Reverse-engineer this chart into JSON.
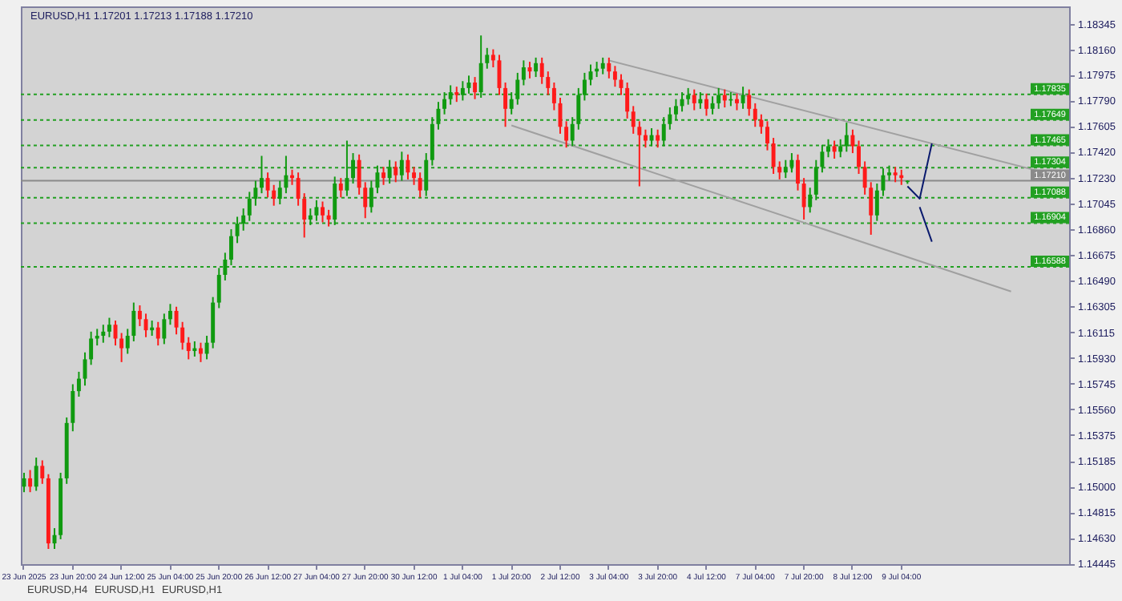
{
  "chart_data": {
    "type": "candlestick",
    "categories": [
      "23 Jun 2025",
      null,
      null,
      null,
      null,
      null,
      null,
      null,
      "23 Jun 20:00",
      null,
      null,
      null,
      null,
      null,
      null,
      null,
      "24 Jun 12:00",
      null,
      null,
      null,
      null,
      null,
      null,
      null,
      "25 Jun 04:00",
      null,
      null,
      null,
      null,
      null,
      null,
      null,
      "25 Jun 20:00",
      null,
      null,
      null,
      null,
      null,
      null,
      null,
      "26 Jun 12:00",
      null,
      null,
      null,
      null,
      null,
      null,
      null,
      "27 Jun 04:00",
      null,
      null,
      null,
      null,
      null,
      null,
      null,
      "27 Jun 20:00",
      null,
      null,
      null,
      null,
      null,
      null,
      null,
      "30 Jun 12:00",
      null,
      null,
      null,
      null,
      null,
      null,
      null,
      "1 Jul 04:00",
      null,
      null,
      null,
      null,
      null,
      null,
      null,
      "1 Jul 20:00",
      null,
      null,
      null,
      null,
      null,
      null,
      null,
      "2 Jul 12:00",
      null,
      null,
      null,
      null,
      null,
      null,
      null,
      "3 Jul 04:00",
      null,
      null,
      null,
      null,
      null,
      null,
      null,
      "3 Jul 20:00",
      null,
      null,
      null,
      null,
      null,
      null,
      null,
      "4 Jul 12:00",
      null,
      null,
      null,
      null,
      null,
      null,
      null,
      "7 Jul 04:00",
      null,
      null,
      null,
      null,
      null,
      null,
      null,
      "7 Jul 20:00",
      null,
      null,
      null,
      null,
      null,
      null,
      null,
      "8 Jul 12:00",
      null,
      null,
      null,
      null,
      null,
      null,
      null,
      "9 Jul 04:00",
      null,
      null,
      null,
      null,
      null,
      null,
      null,
      null,
      null,
      null,
      null,
      null,
      null,
      null,
      null,
      null,
      null,
      null,
      null,
      null,
      null,
      null,
      null,
      null,
      null,
      null,
      null
    ],
    "ohlc": [
      [
        1.15,
        1.151,
        1.1496,
        1.1506
      ],
      [
        1.1506,
        1.1512,
        1.1496,
        1.15
      ],
      [
        1.15,
        1.1521,
        1.1497,
        1.1515
      ],
      [
        1.1515,
        1.1519,
        1.1502,
        1.1506
      ],
      [
        1.1506,
        1.1509,
        1.1455,
        1.1459
      ],
      [
        1.1459,
        1.147,
        1.1455,
        1.1465
      ],
      [
        1.1465,
        1.151,
        1.1462,
        1.1506
      ],
      [
        1.1506,
        1.155,
        1.1502,
        1.1546
      ],
      [
        1.1546,
        1.1574,
        1.154,
        1.1569
      ],
      [
        1.1569,
        1.1583,
        1.1565,
        1.1578
      ],
      [
        1.1578,
        1.1597,
        1.1573,
        1.1592
      ],
      [
        1.1592,
        1.1612,
        1.1588,
        1.1607
      ],
      [
        1.1607,
        1.1614,
        1.1602,
        1.1609
      ],
      [
        1.1609,
        1.1617,
        1.1604,
        1.1612
      ],
      [
        1.1612,
        1.1622,
        1.1608,
        1.1617
      ],
      [
        1.1617,
        1.162,
        1.1602,
        1.1607
      ],
      [
        1.1607,
        1.1611,
        1.159,
        1.16
      ],
      [
        1.16,
        1.1614,
        1.1596,
        1.1609
      ],
      [
        1.1609,
        1.1633,
        1.1605,
        1.1627
      ],
      [
        1.1627,
        1.1631,
        1.1616,
        1.1621
      ],
      [
        1.1621,
        1.1625,
        1.1608,
        1.1613
      ],
      [
        1.1613,
        1.162,
        1.1609,
        1.1615
      ],
      [
        1.1615,
        1.1619,
        1.1602,
        1.1607
      ],
      [
        1.1607,
        1.1625,
        1.1603,
        1.1621
      ],
      [
        1.1621,
        1.1632,
        1.1617,
        1.1627
      ],
      [
        1.1627,
        1.163,
        1.161,
        1.1615
      ],
      [
        1.1615,
        1.1619,
        1.1599,
        1.1604
      ],
      [
        1.1604,
        1.1608,
        1.1592,
        1.1598
      ],
      [
        1.1598,
        1.1605,
        1.1594,
        1.16
      ],
      [
        1.16,
        1.1604,
        1.159,
        1.1596
      ],
      [
        1.1596,
        1.1609,
        1.1592,
        1.1604
      ],
      [
        1.1604,
        1.1637,
        1.16,
        1.1633
      ],
      [
        1.1633,
        1.1658,
        1.1629,
        1.1653
      ],
      [
        1.1653,
        1.1669,
        1.1649,
        1.1664
      ],
      [
        1.1664,
        1.1686,
        1.166,
        1.1681
      ],
      [
        1.1681,
        1.1695,
        1.1676,
        1.169
      ],
      [
        1.169,
        1.1701,
        1.1685,
        1.1696
      ],
      [
        1.1696,
        1.1713,
        1.1692,
        1.1708
      ],
      [
        1.1708,
        1.1721,
        1.1703,
        1.1716
      ],
      [
        1.1716,
        1.1739,
        1.1712,
        1.1723
      ],
      [
        1.1723,
        1.1727,
        1.1709,
        1.1714
      ],
      [
        1.1714,
        1.1718,
        1.1703,
        1.1708
      ],
      [
        1.1708,
        1.1721,
        1.1704,
        1.1716
      ],
      [
        1.1716,
        1.1739,
        1.1712,
        1.1725
      ],
      [
        1.1725,
        1.1729,
        1.1718,
        1.1723
      ],
      [
        1.1723,
        1.1727,
        1.1703,
        1.1708
      ],
      [
        1.1708,
        1.1712,
        1.168,
        1.1693
      ],
      [
        1.1693,
        1.1701,
        1.1689,
        1.1696
      ],
      [
        1.1696,
        1.1707,
        1.1692,
        1.1702
      ],
      [
        1.1702,
        1.1706,
        1.1691,
        1.1696
      ],
      [
        1.1696,
        1.17,
        1.1688,
        1.1693
      ],
      [
        1.1693,
        1.1724,
        1.1689,
        1.1719
      ],
      [
        1.1719,
        1.1723,
        1.1709,
        1.1714
      ],
      [
        1.1714,
        1.175,
        1.171,
        1.1723
      ],
      [
        1.1723,
        1.1741,
        1.1719,
        1.1736
      ],
      [
        1.1736,
        1.174,
        1.1711,
        1.1716
      ],
      [
        1.1716,
        1.172,
        1.1694,
        1.1702
      ],
      [
        1.1702,
        1.1721,
        1.1698,
        1.1716
      ],
      [
        1.1716,
        1.1732,
        1.1712,
        1.1727
      ],
      [
        1.1727,
        1.1731,
        1.1718,
        1.1723
      ],
      [
        1.1723,
        1.1736,
        1.1719,
        1.1731
      ],
      [
        1.1731,
        1.1735,
        1.172,
        1.1725
      ],
      [
        1.1725,
        1.1742,
        1.1721,
        1.1736
      ],
      [
        1.1736,
        1.174,
        1.1722,
        1.1727
      ],
      [
        1.1727,
        1.1731,
        1.1718,
        1.1723
      ],
      [
        1.1723,
        1.1727,
        1.1709,
        1.1714
      ],
      [
        1.1714,
        1.1741,
        1.171,
        1.1736
      ],
      [
        1.1736,
        1.1767,
        1.1732,
        1.1762
      ],
      [
        1.1762,
        1.1778,
        1.1758,
        1.1773
      ],
      [
        1.1773,
        1.1785,
        1.1769,
        1.178
      ],
      [
        1.178,
        1.179,
        1.1776,
        1.1785
      ],
      [
        1.1785,
        1.1789,
        1.1778,
        1.1783
      ],
      [
        1.1783,
        1.1793,
        1.1779,
        1.1788
      ],
      [
        1.1788,
        1.1797,
        1.1784,
        1.1792
      ],
      [
        1.1792,
        1.1796,
        1.178,
        1.1785
      ],
      [
        1.1785,
        1.1826,
        1.1781,
        1.1806
      ],
      [
        1.1806,
        1.1817,
        1.1802,
        1.1812
      ],
      [
        1.1812,
        1.1816,
        1.1803,
        1.1808
      ],
      [
        1.1808,
        1.1812,
        1.1783,
        1.1788
      ],
      [
        1.1788,
        1.1792,
        1.176,
        1.1773
      ],
      [
        1.1773,
        1.1785,
        1.1769,
        1.178
      ],
      [
        1.178,
        1.1799,
        1.1776,
        1.1794
      ],
      [
        1.1794,
        1.1808,
        1.179,
        1.1803
      ],
      [
        1.1803,
        1.1807,
        1.1795,
        1.18
      ],
      [
        1.18,
        1.181,
        1.1796,
        1.1806
      ],
      [
        1.1806,
        1.181,
        1.1791,
        1.1796
      ],
      [
        1.1796,
        1.18,
        1.1783,
        1.1788
      ],
      [
        1.1788,
        1.1792,
        1.1772,
        1.1777
      ],
      [
        1.1777,
        1.1781,
        1.1755,
        1.176
      ],
      [
        1.176,
        1.1764,
        1.1745,
        1.175
      ],
      [
        1.175,
        1.1767,
        1.1746,
        1.1762
      ],
      [
        1.1762,
        1.1788,
        1.1758,
        1.1783
      ],
      [
        1.1783,
        1.1799,
        1.1779,
        1.1794
      ],
      [
        1.1794,
        1.1805,
        1.179,
        1.18
      ],
      [
        1.18,
        1.1807,
        1.1796,
        1.1802
      ],
      [
        1.1802,
        1.181,
        1.1798,
        1.1806
      ],
      [
        1.1806,
        1.181,
        1.1795,
        1.18
      ],
      [
        1.18,
        1.1804,
        1.1789,
        1.1794
      ],
      [
        1.1794,
        1.1798,
        1.1783,
        1.1788
      ],
      [
        1.1788,
        1.1792,
        1.1766,
        1.1771
      ],
      [
        1.1771,
        1.1775,
        1.1755,
        1.176
      ],
      [
        1.176,
        1.1764,
        1.1717,
        1.1754
      ],
      [
        1.1754,
        1.1758,
        1.1745,
        1.175
      ],
      [
        1.175,
        1.1759,
        1.1746,
        1.1754
      ],
      [
        1.1754,
        1.1758,
        1.1745,
        1.175
      ],
      [
        1.175,
        1.1767,
        1.1746,
        1.1762
      ],
      [
        1.1762,
        1.1774,
        1.1758,
        1.1769
      ],
      [
        1.1769,
        1.178,
        1.1765,
        1.1775
      ],
      [
        1.1775,
        1.1785,
        1.1771,
        1.178
      ],
      [
        1.178,
        1.1788,
        1.1776,
        1.1783
      ],
      [
        1.1783,
        1.1787,
        1.1772,
        1.1777
      ],
      [
        1.1777,
        1.1785,
        1.1773,
        1.178
      ],
      [
        1.178,
        1.1784,
        1.1768,
        1.1773
      ],
      [
        1.1773,
        1.1782,
        1.1769,
        1.1777
      ],
      [
        1.1777,
        1.1788,
        1.1773,
        1.1783
      ],
      [
        1.1783,
        1.1787,
        1.1774,
        1.1779
      ],
      [
        1.1779,
        1.1785,
        1.1775,
        1.178
      ],
      [
        1.178,
        1.1784,
        1.1772,
        1.1777
      ],
      [
        1.1777,
        1.1789,
        1.1773,
        1.1783
      ],
      [
        1.1783,
        1.1787,
        1.1768,
        1.1773
      ],
      [
        1.1773,
        1.1777,
        1.176,
        1.1765
      ],
      [
        1.1765,
        1.1769,
        1.1755,
        1.176
      ],
      [
        1.176,
        1.1764,
        1.1743,
        1.1748
      ],
      [
        1.1748,
        1.1752,
        1.1726,
        1.1731
      ],
      [
        1.1731,
        1.1735,
        1.1722,
        1.1727
      ],
      [
        1.1727,
        1.1736,
        1.1723,
        1.1731
      ],
      [
        1.1731,
        1.1741,
        1.1727,
        1.1736
      ],
      [
        1.1736,
        1.174,
        1.1714,
        1.1719
      ],
      [
        1.1719,
        1.1723,
        1.1693,
        1.1702
      ],
      [
        1.1702,
        1.1716,
        1.1698,
        1.1711
      ],
      [
        1.1711,
        1.1736,
        1.1707,
        1.1731
      ],
      [
        1.1731,
        1.1747,
        1.1727,
        1.1742
      ],
      [
        1.1742,
        1.1751,
        1.1738,
        1.1746
      ],
      [
        1.1746,
        1.175,
        1.1737,
        1.1742
      ],
      [
        1.1742,
        1.1751,
        1.1738,
        1.1746
      ],
      [
        1.1746,
        1.1763,
        1.1742,
        1.1754
      ],
      [
        1.1754,
        1.1758,
        1.1741,
        1.1746
      ],
      [
        1.1746,
        1.175,
        1.1726,
        1.1731
      ],
      [
        1.1731,
        1.1735,
        1.1711,
        1.1716
      ],
      [
        1.1716,
        1.172,
        1.1682,
        1.1696
      ],
      [
        1.1696,
        1.1719,
        1.1692,
        1.1714
      ],
      [
        1.1714,
        1.173,
        1.171,
        1.1725
      ],
      [
        1.1725,
        1.1732,
        1.1721,
        1.1727
      ],
      [
        1.1727,
        1.1731,
        1.172,
        1.1725
      ],
      [
        1.1725,
        1.1729,
        1.1718,
        1.1723
      ],
      [
        1.17201,
        1.17213,
        1.17188,
        1.1721
      ],
      null,
      null,
      null,
      null,
      null,
      null,
      null,
      null,
      null,
      null,
      null,
      null,
      null,
      null,
      null,
      null,
      null,
      null,
      null,
      null,
      null,
      null,
      null,
      null,
      null,
      null
    ],
    "series": [
      {
        "type": "line",
        "color": "#a0a0a0",
        "values": [
          null,
          null,
          null,
          null,
          null,
          null,
          null,
          null,
          null,
          null,
          null,
          null,
          null,
          null,
          null,
          null,
          null,
          null,
          null,
          null,
          null,
          null,
          null,
          null,
          null,
          null,
          null,
          null,
          null,
          null,
          null,
          null,
          null,
          null,
          null,
          null,
          null,
          null,
          null,
          null,
          null,
          null,
          null,
          null,
          null,
          null,
          null,
          null,
          null,
          null,
          null,
          null,
          null,
          null,
          null,
          null,
          null,
          null,
          null,
          null,
          null,
          null,
          null,
          null,
          null,
          null,
          null,
          null,
          null,
          null,
          null,
          null,
          null,
          null,
          null,
          null,
          null,
          null,
          null,
          null,
          null,
          null,
          null,
          null,
          null,
          null,
          null,
          null,
          null,
          null,
          null,
          null,
          null,
          null,
          null,
          null,
          1.1808,
          null,
          null,
          null,
          null,
          null,
          null,
          null,
          null,
          null,
          null,
          null,
          null,
          null,
          null,
          null,
          null,
          null,
          null,
          null,
          null,
          null,
          null,
          null,
          null,
          null,
          null,
          null,
          null,
          null,
          null,
          null,
          null,
          null,
          null,
          null,
          null,
          null,
          null,
          null,
          null,
          null,
          null,
          null,
          null,
          null,
          null,
          null,
          null,
          null,
          null,
          null,
          null,
          null,
          null,
          null,
          null,
          null,
          null,
          null,
          null,
          null,
          null,
          null,
          null,
          null,
          null,
          null,
          null,
          null,
          null,
          null,
          null,
          null,
          null,
          1.1723
        ]
      },
      {
        "type": "line",
        "color": "#a0a0a0",
        "values": [
          null,
          null,
          null,
          null,
          null,
          null,
          null,
          null,
          null,
          null,
          null,
          null,
          null,
          null,
          null,
          null,
          null,
          null,
          null,
          null,
          null,
          null,
          null,
          null,
          null,
          null,
          null,
          null,
          null,
          null,
          null,
          null,
          null,
          null,
          null,
          null,
          null,
          null,
          null,
          null,
          null,
          null,
          null,
          null,
          null,
          null,
          null,
          null,
          null,
          null,
          null,
          null,
          null,
          null,
          null,
          null,
          null,
          null,
          null,
          null,
          null,
          null,
          null,
          null,
          null,
          null,
          null,
          null,
          null,
          null,
          null,
          null,
          null,
          null,
          null,
          null,
          null,
          null,
          null,
          null,
          1.1761,
          null,
          null,
          null,
          null,
          null,
          null,
          null,
          null,
          null,
          null,
          null,
          null,
          null,
          null,
          null,
          null,
          null,
          null,
          null,
          null,
          null,
          null,
          null,
          null,
          null,
          null,
          null,
          null,
          null,
          null,
          null,
          null,
          null,
          null,
          null,
          null,
          null,
          null,
          null,
          null,
          null,
          null,
          null,
          null,
          null,
          null,
          null,
          null,
          null,
          null,
          null,
          null,
          null,
          null,
          null,
          null,
          null,
          null,
          null,
          null,
          null,
          null,
          null,
          null,
          null,
          null,
          null,
          null,
          null,
          null,
          null,
          null,
          null,
          null,
          null,
          null,
          null,
          null,
          null,
          null,
          null,
          1.1641,
          null,
          null,
          null,
          null,
          null,
          null,
          null,
          null,
          null
        ]
      },
      {
        "type": "line",
        "color": "#0a1a6e",
        "values": [
          null,
          null,
          null,
          null,
          null,
          null,
          null,
          null,
          null,
          null,
          null,
          null,
          null,
          null,
          null,
          null,
          null,
          null,
          null,
          null,
          null,
          null,
          null,
          null,
          null,
          null,
          null,
          null,
          null,
          null,
          null,
          null,
          null,
          null,
          null,
          null,
          null,
          null,
          null,
          null,
          null,
          null,
          null,
          null,
          null,
          null,
          null,
          null,
          null,
          null,
          null,
          null,
          null,
          null,
          null,
          null,
          null,
          null,
          null,
          null,
          null,
          null,
          null,
          null,
          null,
          null,
          null,
          null,
          null,
          null,
          null,
          null,
          null,
          null,
          null,
          null,
          null,
          null,
          null,
          null,
          null,
          null,
          null,
          null,
          null,
          null,
          null,
          null,
          null,
          null,
          null,
          null,
          null,
          null,
          null,
          null,
          null,
          null,
          null,
          null,
          null,
          null,
          null,
          null,
          null,
          null,
          null,
          null,
          null,
          null,
          null,
          null,
          null,
          null,
          null,
          null,
          null,
          null,
          null,
          null,
          null,
          null,
          null,
          null,
          null,
          null,
          null,
          null,
          null,
          null,
          null,
          null,
          null,
          null,
          null,
          null,
          null,
          null,
          null,
          null,
          null,
          null,
          null,
          null,
          null,
          1.1717,
          null,
          1.1708,
          null,
          1.1748,
          null,
          null,
          null,
          null,
          null,
          null,
          null,
          null,
          null,
          null,
          null,
          null,
          null,
          null,
          null,
          null,
          null,
          null,
          null,
          null,
          null,
          null
        ]
      },
      {
        "type": "line",
        "color": "#0a1a6e",
        "values": [
          null,
          null,
          null,
          null,
          null,
          null,
          null,
          null,
          null,
          null,
          null,
          null,
          null,
          null,
          null,
          null,
          null,
          null,
          null,
          null,
          null,
          null,
          null,
          null,
          null,
          null,
          null,
          null,
          null,
          null,
          null,
          null,
          null,
          null,
          null,
          null,
          null,
          null,
          null,
          null,
          null,
          null,
          null,
          null,
          null,
          null,
          null,
          null,
          null,
          null,
          null,
          null,
          null,
          null,
          null,
          null,
          null,
          null,
          null,
          null,
          null,
          null,
          null,
          null,
          null,
          null,
          null,
          null,
          null,
          null,
          null,
          null,
          null,
          null,
          null,
          null,
          null,
          null,
          null,
          null,
          null,
          null,
          null,
          null,
          null,
          null,
          null,
          null,
          null,
          null,
          null,
          null,
          null,
          null,
          null,
          null,
          null,
          null,
          null,
          null,
          null,
          null,
          null,
          null,
          null,
          null,
          null,
          null,
          null,
          null,
          null,
          null,
          null,
          null,
          null,
          null,
          null,
          null,
          null,
          null,
          null,
          null,
          null,
          null,
          null,
          null,
          null,
          null,
          null,
          null,
          null,
          null,
          null,
          null,
          null,
          null,
          null,
          null,
          null,
          null,
          null,
          null,
          null,
          null,
          null,
          null,
          null,
          1.1702,
          null,
          1.1677,
          null,
          null,
          null,
          null,
          null,
          null,
          null,
          null,
          null,
          null,
          null,
          null,
          null,
          null,
          null,
          null,
          null,
          null,
          null,
          null,
          null,
          null
        ]
      }
    ],
    "ylim": [
      1.1444,
      1.1847
    ],
    "yticks": [
      1.14445,
      {
        "value": 1.1463,
        "label": "1.14630"
      },
      1.14815,
      {
        "value": 1.15,
        "label": "1.15000"
      },
      1.15185,
      1.15375,
      {
        "value": 1.1556,
        "label": "1.15560"
      },
      1.15745,
      {
        "value": 1.1593,
        "label": "1.15930"
      },
      1.16115,
      1.16305,
      {
        "value": 1.1649,
        "label": "1.16490"
      },
      1.16675,
      {
        "value": 1.1686,
        "label": "1.16860"
      },
      1.17045,
      {
        "value": 1.1723,
        "label": "1.17230"
      },
      {
        "value": 1.1742,
        "label": "1.17420"
      },
      1.17605,
      {
        "value": 1.1779,
        "label": "1.17790"
      },
      1.17975,
      {
        "value": 1.1816,
        "label": "1.18160"
      },
      1.18345
    ],
    "ref_lines": [
      {
        "axis": "y",
        "value": 1.17835,
        "label": "1.17835",
        "color": "#22a022",
        "line_style": "dashed"
      },
      {
        "axis": "y",
        "value": 1.17649,
        "label": "1.17649",
        "color": "#22a022",
        "line_style": "dashed"
      },
      {
        "axis": "y",
        "value": 1.17465,
        "label": "1.17465",
        "color": "#22a022",
        "line_style": "dashed"
      },
      {
        "axis": "y",
        "value": 1.17304,
        "label": "1.17304",
        "color": "#22a022",
        "line_style": "dashed"
      },
      {
        "axis": "y",
        "value": 1.1721,
        "label": "1.17210",
        "color": "#8a8a8a",
        "line_style": "solid"
      },
      {
        "axis": "y",
        "value": 1.17088,
        "label": "1.17088",
        "color": "#22a022",
        "line_style": "dashed"
      },
      {
        "axis": "y",
        "value": 1.16904,
        "label": "1.16904",
        "color": "#22a022",
        "line_style": "dashed"
      },
      {
        "axis": "y",
        "value": 1.16588,
        "label": "1.16588",
        "color": "#22a022",
        "line_style": "dashed"
      }
    ],
    "annotations": [
      "EURUSD,H1  1.17201 1.17213 1.17188 1.17210",
      "EURUSD,H4",
      "EURUSD,H1",
      "EURUSD,H1"
    ]
  }
}
